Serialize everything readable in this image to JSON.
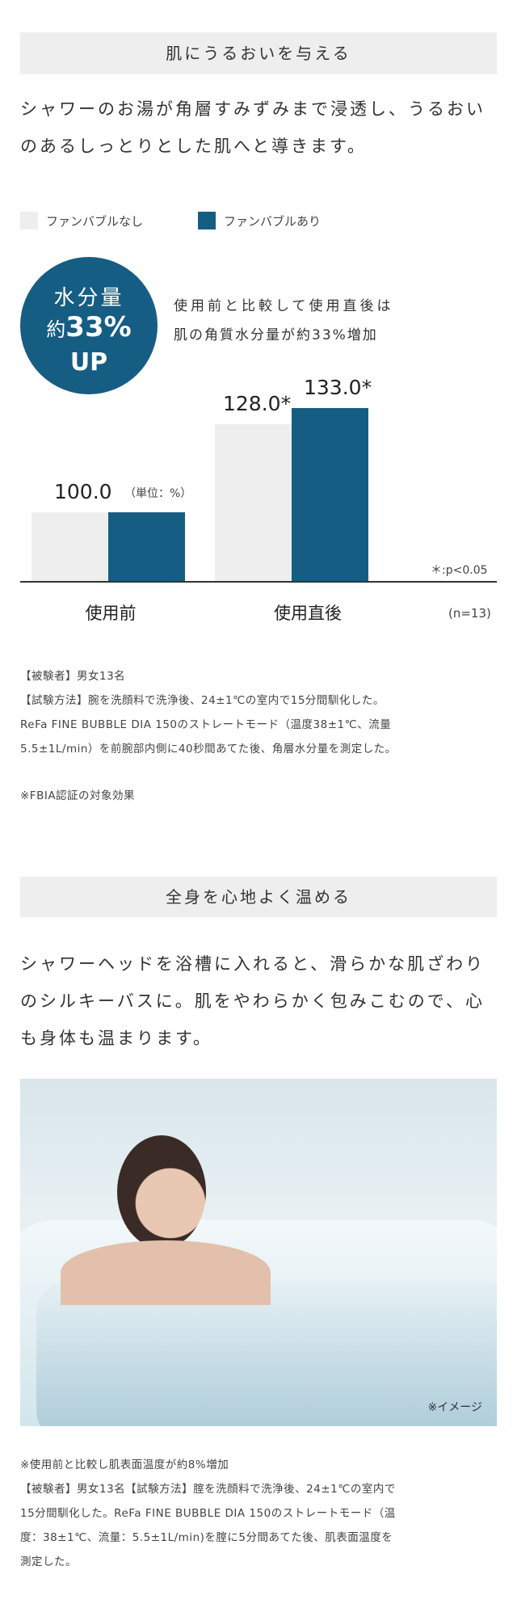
{
  "section1": {
    "heading": "肌にうるおいを与える",
    "lead": "シャワーのお湯が角層すみずみまで浸透し、うるおいのあるしっとりとした肌へと導きます。",
    "legend": [
      {
        "label": "ファンバブルなし",
        "color": "#eeeeee"
      },
      {
        "label": "ファンバブルあり",
        "color": "#165d83"
      }
    ],
    "badge": {
      "line1": "水分量",
      "prefix": "約",
      "value": "33%",
      "line3": "UP"
    },
    "badge_caption_1": "使用前と比較して使用直後は",
    "badge_caption_2": "肌の角質水分量が約33%増加",
    "unit_label": "（単位：%）",
    "significance": "＊:p<0.05",
    "n_label": "(n=13)",
    "notes": [
      "【被験者】男女13名",
      "【試験方法】腕を洗顔料で洗浄後、24±1℃の室内で15分間馴化した。",
      "ReFa FINE BUBBLE DIA 150のストレートモード（温度38±1℃、流量",
      "5.5±1L/min）を前腕部内側に40秒間あてた後、角層水分量を測定した。"
    ],
    "certification": "※FBIA認証の対象効果"
  },
  "chart_data": {
    "type": "bar",
    "categories": [
      "使用前",
      "使用直後"
    ],
    "series": [
      {
        "name": "ファンバブルなし",
        "values": [
          100.0,
          128.0
        ],
        "labels": [
          "100.0",
          ""
        ],
        "color": "#eeeeee"
      },
      {
        "name": "ファンバブルあり",
        "values": [
          100.0,
          133.0
        ],
        "labels": [
          "",
          "133.0*"
        ],
        "color": "#165d83"
      }
    ],
    "group_labels": [
      "",
      "128.0*"
    ],
    "ylabel": "",
    "xlabel": "",
    "grid": false,
    "legend": "top-left"
  },
  "section2": {
    "heading": "全身を心地よく温める",
    "lead": "シャワーヘッドを浴槽に入れると、滑らかな肌ざわりのシルキーバスに。肌をやわらかく包みこむので、心も身体も温まります。",
    "image_caption": "※イメージ",
    "notes": [
      "※使用前と比較し肌表面温度が約8%増加",
      "【被験者】男女13名【試験方法】腟を洗顔料で洗浄後、24±1℃の室内で",
      "15分間馴化した。ReFa FINE BUBBLE DIA 150のストレートモード（温",
      "度：38±1℃、流量：5.5±1L/min)を腟に5分間あてた後、肌表面温度を",
      "測定した。"
    ]
  }
}
